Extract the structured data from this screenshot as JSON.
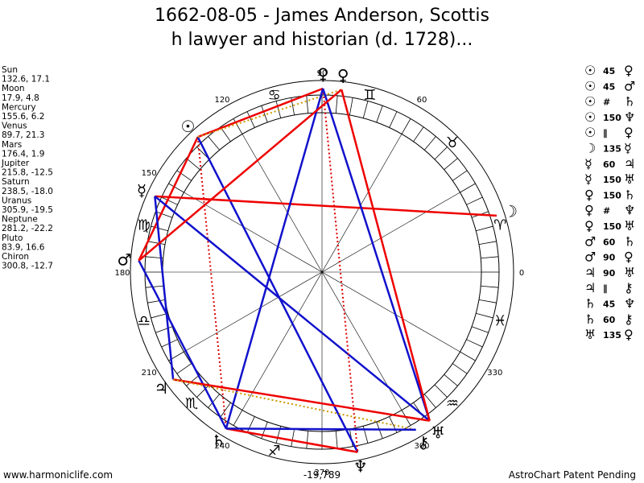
{
  "title": [
    "1662-08-05 - James Anderson, Scottis",
    "h lawyer and historian (d. 1728)..."
  ],
  "planets": [
    {
      "name": "Sun",
      "coords": "132.6, 17.1",
      "glyph": "☉"
    },
    {
      "name": "Moon",
      "coords": "17.9, 4.8",
      "glyph": "☽"
    },
    {
      "name": "Mercury",
      "coords": "155.6, 6.2",
      "glyph": "☿"
    },
    {
      "name": "Venus",
      "coords": "89.7, 21.3",
      "glyph": "♀"
    },
    {
      "name": "Mars",
      "coords": "176.4, 1.9",
      "glyph": "♂"
    },
    {
      "name": "Jupiter",
      "coords": "215.8, -12.5",
      "glyph": "♃"
    },
    {
      "name": "Saturn",
      "coords": "238.5, -18.0",
      "glyph": "♄"
    },
    {
      "name": "Uranus",
      "coords": "305.9, -19.5",
      "glyph": "♅"
    },
    {
      "name": "Neptune",
      "coords": "281.2, -22.2",
      "glyph": "♆"
    },
    {
      "name": "Pluto",
      "coords": "83.9, 16.6",
      "glyph": "♀"
    },
    {
      "name": "Chiron",
      "coords": "300.8, -12.7",
      "glyph": "⚷"
    }
  ],
  "signs": [
    "♈",
    "♉",
    "♊",
    "♋",
    null,
    "♍",
    "♎",
    "♏",
    "♐",
    null,
    "♒",
    "♓"
  ],
  "degree_labels": [
    90,
    120,
    60,
    150,
    180,
    0,
    210,
    330,
    240,
    300,
    270
  ],
  "aspects": [
    {
      "a": "☉",
      "aspect": "45",
      "b": "♀"
    },
    {
      "a": "☉",
      "aspect": "45",
      "b": "♂"
    },
    {
      "a": "☉",
      "aspect": "#",
      "b": "♄"
    },
    {
      "a": "☉",
      "aspect": "150",
      "b": "♆"
    },
    {
      "a": "☉",
      "aspect": "∥",
      "b": "♀"
    },
    {
      "a": "☽",
      "aspect": "135",
      "b": "☿"
    },
    {
      "a": "☿",
      "aspect": "60",
      "b": "♃"
    },
    {
      "a": "☿",
      "aspect": "150",
      "b": "♅"
    },
    {
      "a": "♀",
      "aspect": "150",
      "b": "♄"
    },
    {
      "a": "♀",
      "aspect": "#",
      "b": "♆"
    },
    {
      "a": "♀",
      "aspect": "150",
      "b": "♅"
    },
    {
      "a": "♂",
      "aspect": "60",
      "b": "♄"
    },
    {
      "a": "♂",
      "aspect": "90",
      "b": "♀"
    },
    {
      "a": "♃",
      "aspect": "90",
      "b": "♅"
    },
    {
      "a": "♃",
      "aspect": "∥",
      "b": "⚷"
    },
    {
      "a": "♄",
      "aspect": "45",
      "b": "♆"
    },
    {
      "a": "♄",
      "aspect": "60",
      "b": "⚷"
    },
    {
      "a": "♅",
      "aspect": "135",
      "b": "♀"
    }
  ],
  "footer": {
    "left": "www.harmoniclife.com",
    "center": "-19,789",
    "right": "AstroChart Patent Pending"
  }
}
